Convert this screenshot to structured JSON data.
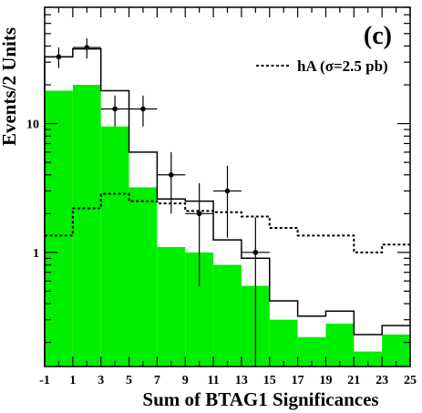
{
  "chart_data": {
    "type": "bar",
    "panel_label": "(c)",
    "xlabel": "Sum of BTAG1 Significances",
    "ylabel": "Events/2 Units",
    "xlim": [
      -1,
      25
    ],
    "ylim": [
      0.13,
      80
    ],
    "yscale": "log",
    "x_ticks": [
      -1,
      1,
      3,
      5,
      7,
      9,
      11,
      13,
      15,
      17,
      19,
      21,
      23,
      25
    ],
    "y_tick_labels": [
      {
        "value": 1,
        "label": "1"
      },
      {
        "value": 10,
        "label": "10"
      }
    ],
    "bin_edges": [
      -1,
      1,
      3,
      5,
      7,
      9,
      11,
      13,
      15,
      17,
      19,
      21,
      23,
      25
    ],
    "series": [
      {
        "name": "",
        "style": "green-fill",
        "color": "#00ee00",
        "values": [
          18,
          20,
          9.5,
          3.2,
          1.1,
          1.0,
          0.8,
          0.55,
          0.3,
          0.22,
          0.28,
          0.17,
          0.23
        ]
      },
      {
        "name": "",
        "style": "solid-step",
        "values": [
          33,
          38,
          18,
          6.0,
          2.6,
          2.5,
          1.25,
          0.9,
          0.42,
          0.32,
          0.35,
          0.23,
          0.27
        ]
      },
      {
        "name": "hA (σ=2.5 pb)",
        "style": "dashed-step",
        "values": [
          1.35,
          2.2,
          2.85,
          2.5,
          2.4,
          2.1,
          2.05,
          1.9,
          1.55,
          1.35,
          1.35,
          1.0,
          1.15
        ]
      }
    ],
    "data_points": {
      "x": [
        0,
        2,
        4,
        6,
        8,
        10,
        12,
        14
      ],
      "y": [
        33,
        39,
        13,
        13,
        4.0,
        2.0,
        3.0,
        1.0
      ],
      "y_err_low": [
        6,
        7,
        3.5,
        3.5,
        2.0,
        1.45,
        1.7,
        0.87
      ],
      "y_err_high": [
        6,
        7,
        3.5,
        3.5,
        2.0,
        1.45,
        1.7,
        0.87
      ]
    },
    "legend": {
      "position": "top-right",
      "entry": "hA (σ=2.5 pb)"
    }
  }
}
